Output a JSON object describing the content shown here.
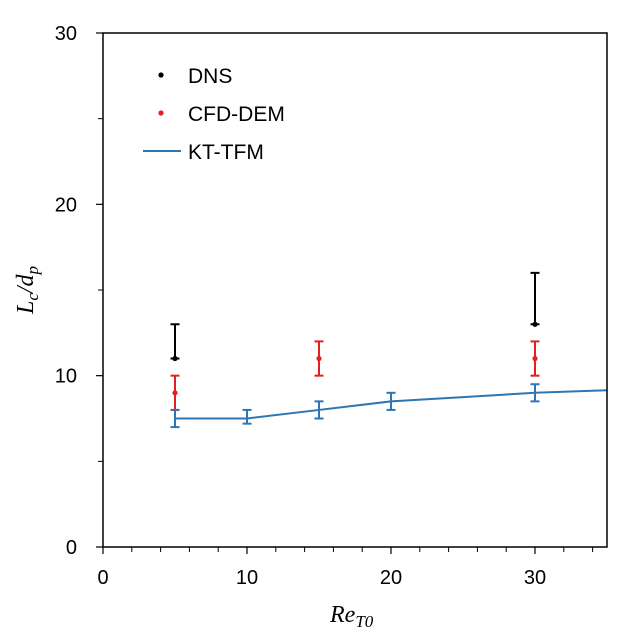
{
  "chart_data": {
    "type": "scatter",
    "title": "",
    "xlabel": {
      "main": "Re",
      "sub": "T0"
    },
    "ylabel": {
      "main": "L",
      "sub1": "c",
      "mid": "/d",
      "sub2": "p"
    },
    "xlim": [
      0,
      35
    ],
    "ylim": [
      0,
      30
    ],
    "xticks": [
      0,
      10,
      20,
      30
    ],
    "yticks": [
      0,
      10,
      20,
      30
    ],
    "xticks_minor": [
      2,
      4,
      6,
      8,
      12,
      14,
      16,
      18,
      22,
      24,
      26,
      28,
      32,
      34
    ],
    "yticks_minor": [
      5,
      15,
      25
    ],
    "legend_position": "top-left",
    "series": [
      {
        "name": "DNS",
        "kind": "points",
        "color": "#000000",
        "points": [
          {
            "x": 5,
            "y": 11,
            "lo": 11,
            "hi": 13
          },
          {
            "x": 30,
            "y": 13,
            "lo": 13,
            "hi": 16
          }
        ]
      },
      {
        "name": "CFD-DEM",
        "kind": "points",
        "color": "#e02020",
        "points": [
          {
            "x": 5,
            "y": 9,
            "lo": 8,
            "hi": 10
          },
          {
            "x": 15,
            "y": 11,
            "lo": 10,
            "hi": 12
          },
          {
            "x": 30,
            "y": 11,
            "lo": 10,
            "hi": 12
          }
        ]
      },
      {
        "name": "KT-TFM",
        "kind": "line",
        "color": "#2e75b6",
        "line": [
          {
            "x": 5,
            "y": 7.5
          },
          {
            "x": 10,
            "y": 7.5
          },
          {
            "x": 15,
            "y": 8.0
          },
          {
            "x": 20,
            "y": 8.5
          },
          {
            "x": 25,
            "y": 8.75
          },
          {
            "x": 30,
            "y": 9.0
          },
          {
            "x": 35,
            "y": 9.15
          }
        ],
        "errorbars": [
          {
            "x": 5,
            "lo": 7.0,
            "hi": 8.0
          },
          {
            "x": 10,
            "lo": 7.2,
            "hi": 8.0
          },
          {
            "x": 15,
            "lo": 7.5,
            "hi": 8.5
          },
          {
            "x": 20,
            "lo": 8.0,
            "hi": 9.0
          },
          {
            "x": 30,
            "lo": 8.5,
            "hi": 9.5
          }
        ]
      }
    ]
  }
}
